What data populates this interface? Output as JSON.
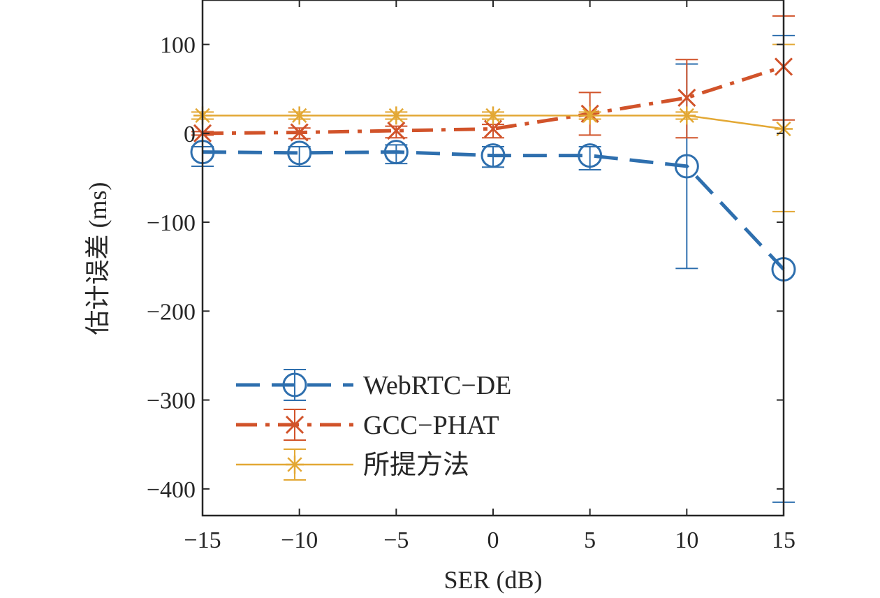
{
  "chart_data": {
    "type": "line",
    "title": "",
    "xlabel": "SER (dB)",
    "ylabel": "估计误差 (ms)",
    "x": [
      -15,
      -10,
      -5,
      0,
      5,
      10,
      15
    ],
    "xlim": [
      -15,
      15
    ],
    "ylim": [
      -430,
      150
    ],
    "xticks": [
      "−15",
      "−10",
      "−5",
      "0",
      "5",
      "10",
      "15"
    ],
    "yticks": [
      "100",
      "0",
      "−100",
      "−200",
      "−300",
      "−400"
    ],
    "ytick_values": [
      100,
      0,
      -100,
      -200,
      -300,
      -400
    ],
    "grid": false,
    "legend_position": "bottom-left",
    "series": [
      {
        "name": "WebRTC−DE",
        "color": "#2e6fae",
        "marker": "circle",
        "line_style": "dashed",
        "values": [
          -21,
          -22,
          -21,
          -25,
          -25,
          -37,
          -153
        ],
        "error_lower": [
          -37,
          -37,
          -34,
          -38,
          -41,
          -152,
          -415
        ],
        "error_upper": [
          -15,
          -15,
          -13,
          -15,
          -15,
          78,
          110
        ]
      },
      {
        "name": "GCC−PHAT",
        "color": "#d1532a",
        "marker": "x",
        "line_style": "dashdot",
        "values": [
          0,
          1,
          3,
          5,
          22,
          40,
          75
        ],
        "error_lower": [
          -2,
          -6,
          -5,
          -5,
          -2,
          -5,
          15
        ],
        "error_upper": [
          2,
          6,
          8,
          10,
          46,
          83,
          132
        ]
      },
      {
        "name": "所提方法",
        "color": "#e3a834",
        "marker": "asterisk",
        "line_style": "solid",
        "values": [
          20,
          20,
          20,
          20,
          20,
          20,
          5
        ],
        "error_lower": [
          16,
          16,
          16,
          16,
          16,
          16,
          -88
        ],
        "error_upper": [
          24,
          24,
          24,
          24,
          24,
          24,
          100
        ]
      }
    ]
  }
}
